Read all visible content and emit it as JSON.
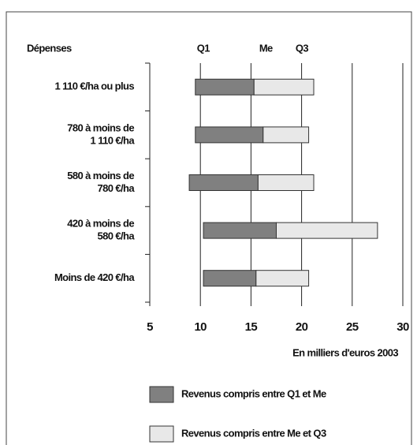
{
  "chart_data": {
    "type": "range-bar",
    "row_header": "Dépenses",
    "column_headers": [
      "Q1",
      "Me",
      "Q3"
    ],
    "categories": [
      [
        "1 110 €/ha ou plus"
      ],
      [
        "780 à moins de",
        "1 110 €/ha"
      ],
      [
        "580 à moins de",
        "780 €/ha"
      ],
      [
        "420 à moins de",
        "580 €/ha"
      ],
      [
        "Moins de 420 €/ha"
      ]
    ],
    "q1": [
      9.5,
      9.5,
      8.9,
      10.3,
      10.3
    ],
    "median": [
      15.3,
      16.2,
      15.7,
      17.5,
      15.5
    ],
    "q3": [
      21.2,
      20.7,
      21.2,
      27.5,
      20.7
    ],
    "series": [
      {
        "name": "Revenus compris entre Q1 et Me",
        "color": "#808080"
      },
      {
        "name": "Revenus compris entre Me et Q3",
        "color": "#e8e8e8"
      }
    ],
    "x_label": "En milliers d'euros 2003",
    "xlim": [
      5,
      30
    ],
    "xticks": [
      5,
      10,
      15,
      20,
      25,
      30
    ],
    "grid": true
  }
}
